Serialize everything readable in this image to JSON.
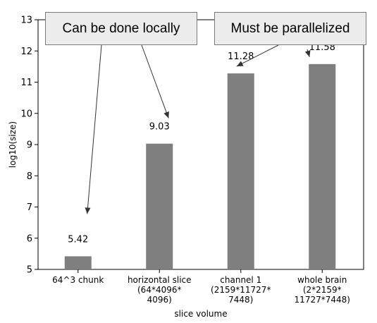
{
  "chart_data": {
    "type": "bar",
    "categories": [
      [
        "64^3 chunk"
      ],
      [
        "horizontal slice",
        "(64*4096*",
        "4096)"
      ],
      [
        "channel 1",
        "(2159*11727*",
        "7448)"
      ],
      [
        "whole brain",
        "(2*2159*",
        "11727*7448)"
      ]
    ],
    "values": [
      5.42,
      9.03,
      11.28,
      11.58
    ],
    "value_labels": [
      "5.42",
      "9.03",
      "11.28",
      "11.58"
    ],
    "xlabel": "slice volume",
    "ylabel": "log10(size)",
    "ylim": [
      5,
      13
    ],
    "yticks": [
      "5",
      "6",
      "7",
      "8",
      "9",
      "10",
      "11",
      "12",
      "13"
    ],
    "bar_color": "#7f7f7f",
    "grid": false,
    "annotations": [
      {
        "text": "Can be done locally",
        "points_to": [
          "64^3 chunk",
          "horizontal slice"
        ]
      },
      {
        "text": "Must be parallelized",
        "points_to": [
          "channel 1",
          "whole brain"
        ]
      }
    ]
  }
}
